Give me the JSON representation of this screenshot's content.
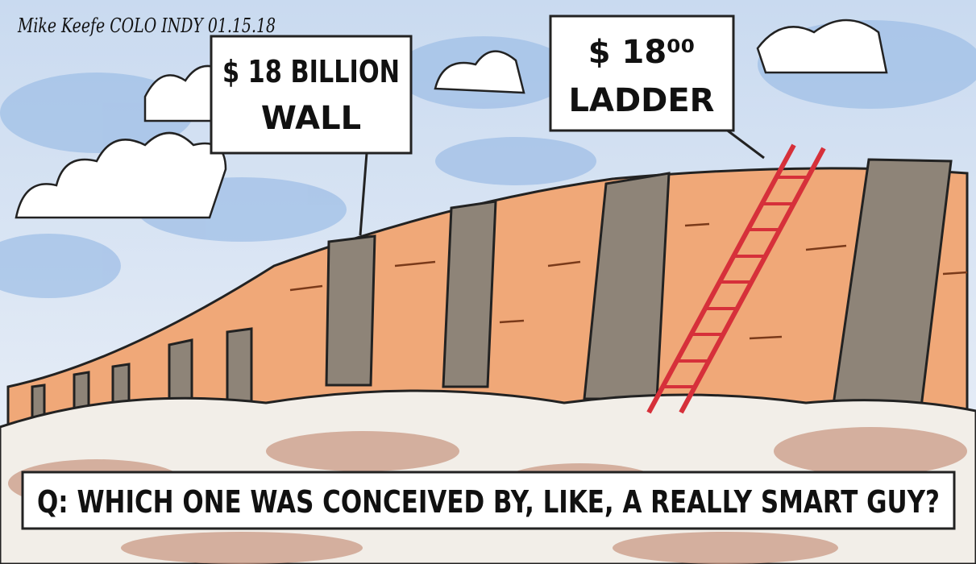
{
  "signature": "Mike Keefe COLO INDY 01.15.18",
  "sign_wall": {
    "lines": [
      "$ 18 BILLION",
      "WALL"
    ]
  },
  "sign_ladder": {
    "lines": [
      "$ 18⁰⁰",
      "LADDER"
    ]
  },
  "caption": "Q: WHICH ONE WAS CONCEIVED BY, LIKE, A REALLY SMART GUY?"
}
